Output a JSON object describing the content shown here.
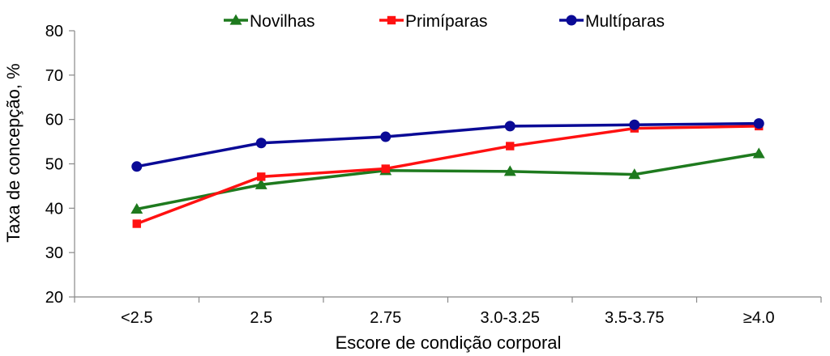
{
  "chart_data": {
    "type": "line",
    "xlabel": "Escore de condição corporal",
    "ylabel": "Taxa de concepção, %",
    "categories": [
      "<2.5",
      "2.5",
      "2.75",
      "3.0-3.25",
      "3.5-3.75",
      "≥4.0"
    ],
    "ylim": [
      20,
      80
    ],
    "yticks": [
      20,
      30,
      40,
      50,
      60,
      70,
      80
    ],
    "grid": false,
    "legend_position": "top",
    "series": [
      {
        "name": "Novilhas",
        "color": "#1e7a1e",
        "marker": "triangle",
        "values": [
          39.8,
          45.3,
          48.5,
          48.3,
          47.6,
          52.3
        ]
      },
      {
        "name": "Primíparas",
        "color": "#ff1111",
        "marker": "square",
        "values": [
          36.5,
          47.1,
          48.9,
          54.0,
          58.0,
          58.5
        ]
      },
      {
        "name": "Multíparas",
        "color": "#0a0a96",
        "marker": "circle",
        "values": [
          49.4,
          54.7,
          56.1,
          58.5,
          58.8,
          59.1
        ]
      }
    ]
  }
}
